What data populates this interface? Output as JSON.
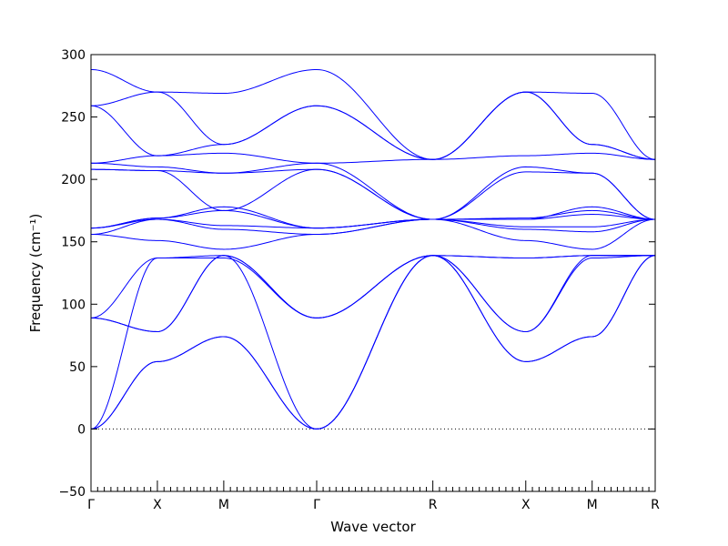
{
  "chart_data": {
    "type": "line",
    "xlabel": "Wave vector",
    "ylabel": "Frequency (cm⁻¹)",
    "ylim": [
      -50,
      300
    ],
    "yticks": [
      -50,
      0,
      50,
      100,
      150,
      200,
      250,
      300
    ],
    "xlim": [
      0,
      8.5
    ],
    "high_symmetry_points": [
      {
        "label": "Γ",
        "x": 0
      },
      {
        "label": "X",
        "x": 1
      },
      {
        "label": "M",
        "x": 2
      },
      {
        "label": "Γ",
        "x": 3.4
      },
      {
        "label": "R",
        "x": 5.15
      },
      {
        "label": "X",
        "x": 6.55
      },
      {
        "label": "M",
        "x": 7.55
      },
      {
        "label": "R",
        "x": 8.5
      }
    ],
    "zero_line": true,
    "line_color": "#0000ff",
    "series": [
      {
        "x": [
          0,
          1,
          2,
          3.4,
          5.15,
          6.55,
          7.55,
          8.5
        ],
        "y": [
          0,
          54,
          74,
          0,
          139,
          54,
          74,
          139
        ]
      },
      {
        "x": [
          0,
          1,
          2,
          3.4,
          5.15,
          6.55,
          7.55,
          8.5
        ],
        "y": [
          0,
          54,
          74,
          0,
          139,
          54,
          74,
          139
        ]
      },
      {
        "x": [
          0,
          1,
          2,
          3.4,
          5.15,
          6.55,
          7.55,
          8.5
        ],
        "y": [
          0,
          137,
          139,
          0,
          139,
          78,
          137,
          139
        ]
      },
      {
        "x": [
          0,
          1,
          2,
          3.4,
          5.15,
          6.55,
          7.55,
          8.5
        ],
        "y": [
          89,
          78,
          139,
          89,
          139,
          78,
          139,
          139
        ]
      },
      {
        "x": [
          0,
          1,
          2,
          3.4,
          5.15,
          6.55,
          7.55,
          8.5
        ],
        "y": [
          89,
          78,
          139,
          89,
          139,
          137,
          139,
          139
        ]
      },
      {
        "x": [
          0,
          1,
          2,
          3.4,
          5.15,
          6.55,
          7.55,
          8.5
        ],
        "y": [
          89,
          137,
          137,
          89,
          139,
          137,
          139,
          139
        ]
      },
      {
        "x": [
          0,
          1,
          2,
          3.4,
          5.15,
          6.55,
          7.55,
          8.5
        ],
        "y": [
          156,
          151,
          144,
          156,
          168,
          151,
          144,
          168
        ]
      },
      {
        "x": [
          0,
          1,
          2,
          3.4,
          5.15,
          6.55,
          7.55,
          8.5
        ],
        "y": [
          156,
          168,
          160,
          156,
          168,
          160,
          158,
          168
        ]
      },
      {
        "x": [
          0,
          1,
          2,
          3.4,
          5.15,
          6.55,
          7.55,
          8.5
        ],
        "y": [
          161,
          168,
          163,
          161,
          168,
          162,
          162,
          168
        ]
      },
      {
        "x": [
          0,
          1,
          2,
          3.4,
          5.15,
          6.55,
          7.55,
          8.5
        ],
        "y": [
          161,
          169,
          175,
          161,
          168,
          168,
          172,
          168
        ]
      },
      {
        "x": [
          0,
          1,
          2,
          3.4,
          5.15,
          6.55,
          7.55,
          8.5
        ],
        "y": [
          161,
          169,
          178,
          161,
          168,
          168,
          178,
          168
        ]
      },
      {
        "x": [
          0,
          1,
          2,
          3.4,
          5.15,
          6.55,
          7.55,
          8.5
        ],
        "y": [
          208,
          207,
          175,
          208,
          168,
          169,
          175,
          168
        ]
      },
      {
        "x": [
          0,
          1,
          2,
          3.4,
          5.15,
          6.55,
          7.55,
          8.5
        ],
        "y": [
          208,
          207,
          205,
          208,
          168,
          206,
          205,
          168
        ]
      },
      {
        "x": [
          0,
          1,
          2,
          3.4,
          5.15,
          6.55,
          7.55,
          8.5
        ],
        "y": [
          213,
          210,
          205,
          213,
          168,
          210,
          205,
          168
        ]
      },
      {
        "x": [
          0,
          1,
          2,
          3.4,
          5.15,
          6.55,
          7.55,
          8.5
        ],
        "y": [
          213,
          219,
          221,
          213,
          216,
          219,
          221,
          216
        ]
      },
      {
        "x": [
          0,
          1,
          2,
          3.4,
          5.15,
          6.55,
          7.55,
          8.5
        ],
        "y": [
          259,
          219,
          228,
          259,
          216,
          270,
          228,
          216
        ]
      },
      {
        "x": [
          0,
          1,
          2,
          3.4,
          5.15,
          6.55,
          7.55,
          8.5
        ],
        "y": [
          259,
          270,
          228,
          259,
          216,
          270,
          228,
          216
        ]
      },
      {
        "x": [
          0,
          1,
          2,
          3.4,
          5.15,
          6.55,
          7.55,
          8.5
        ],
        "y": [
          288,
          270,
          269,
          288,
          216,
          270,
          269,
          216
        ]
      }
    ]
  }
}
